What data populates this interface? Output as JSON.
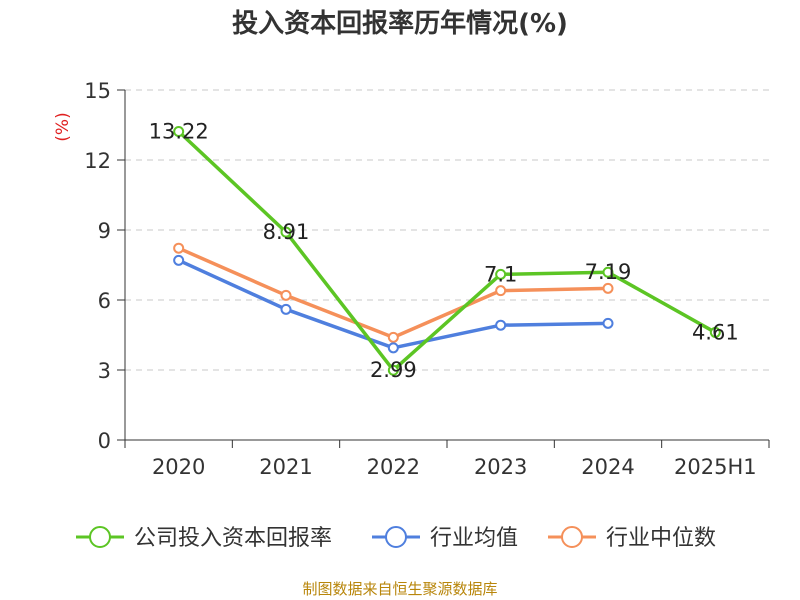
{
  "chart_data": {
    "type": "line",
    "title": "投入资本回报率历年情况(%)",
    "unit": "(%)",
    "categories": [
      "2020",
      "2021",
      "2022",
      "2023",
      "2024",
      "2025H1"
    ],
    "ylim": [
      0,
      15
    ],
    "yticks": [
      0,
      3,
      6,
      9,
      12,
      15
    ],
    "grid": true,
    "legend_position": "bottom",
    "series": [
      {
        "name": "公司投入资本回报率",
        "color": "#5cc524",
        "values": [
          13.22,
          8.91,
          2.99,
          7.1,
          7.19,
          4.61
        ],
        "labels": [
          "13.22",
          "8.91",
          "2.99",
          "7.1",
          "7.19",
          "4.61"
        ]
      },
      {
        "name": "行业均值",
        "color": "#4f7fde",
        "values": [
          7.7,
          5.6,
          3.95,
          4.92,
          5.0,
          null
        ]
      },
      {
        "name": "行业中位数",
        "color": "#f5905a",
        "values": [
          8.22,
          6.2,
          4.4,
          6.4,
          6.5,
          null
        ]
      }
    ]
  },
  "source": "制图数据来自恒生聚源数据库"
}
